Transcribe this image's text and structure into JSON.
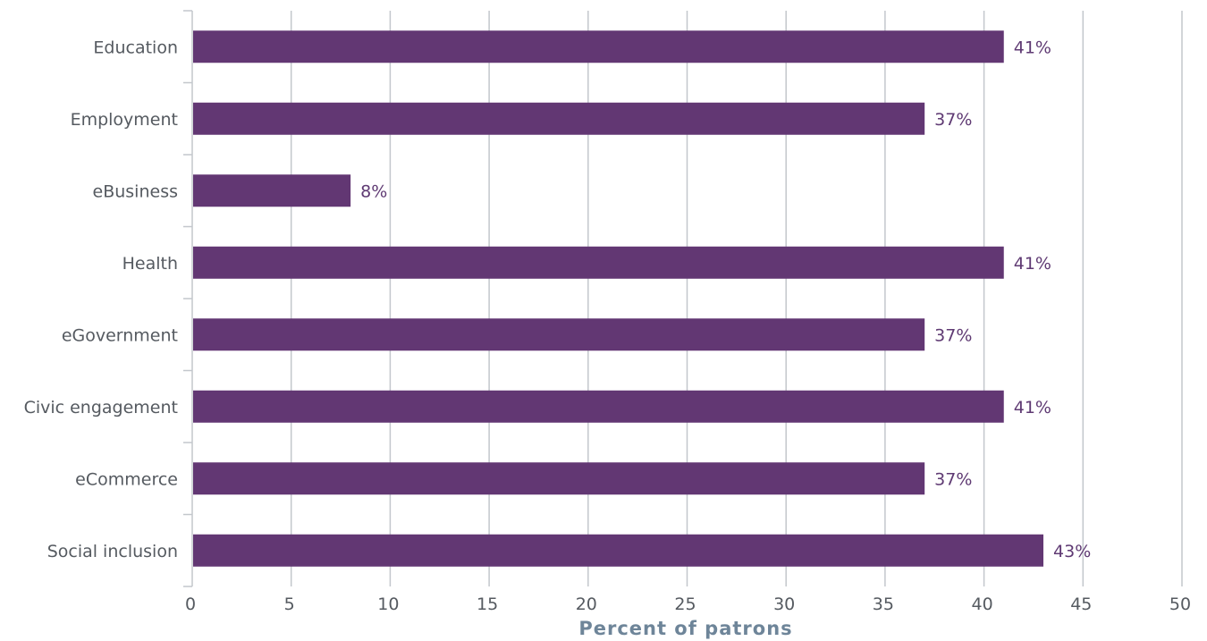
{
  "chart_data": {
    "type": "bar",
    "orientation": "horizontal",
    "categories": [
      "Education",
      "Employment",
      "eBusiness",
      "Health",
      "eGovernment",
      "Civic engagement",
      "eCommerce",
      "Social inclusion"
    ],
    "values": [
      41,
      37,
      8,
      41,
      37,
      41,
      37,
      43
    ],
    "data_labels": [
      "41%",
      "37%",
      "8%",
      "41%",
      "37%",
      "41%",
      "37%",
      "43%"
    ],
    "xlabel": "Percent of patrons",
    "xlim": [
      0,
      50
    ],
    "xticks": [
      "0",
      "5",
      "10",
      "15",
      "20",
      "25",
      "30",
      "35",
      "40",
      "45",
      "50"
    ],
    "grid": true,
    "bar_color": "#623773",
    "label_color": "#5f3a73",
    "grid_color": "#c3c7cc",
    "axis_title_color": "#6e8599"
  }
}
